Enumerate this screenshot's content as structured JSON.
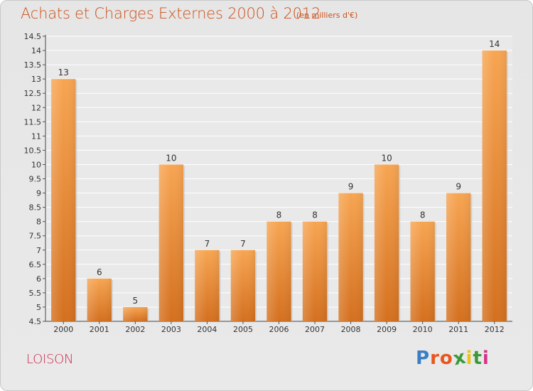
{
  "header": {
    "title": "Achats et Charges Externes 2000 à 2012",
    "subtitle": "(en milliers d'€)"
  },
  "footer": {
    "town": "LOISON",
    "logo_text": "Proxiti",
    "logo_colors": [
      "#3a7fc4",
      "#e8561c",
      "#e8561c",
      "#3a9a3a",
      "#e8c41c",
      "#3a9a3a",
      "#d6338a"
    ]
  },
  "chart_data": {
    "type": "bar",
    "categories": [
      "2000",
      "2001",
      "2002",
      "2003",
      "2004",
      "2005",
      "2006",
      "2007",
      "2008",
      "2009",
      "2010",
      "2011",
      "2012"
    ],
    "values": [
      13,
      6,
      5,
      10,
      7,
      7,
      8,
      8,
      9,
      10,
      8,
      9,
      14
    ],
    "value_labels": [
      "13",
      "6",
      "5",
      "10",
      "7",
      "7",
      "8",
      "8",
      "9",
      "10",
      "8",
      "9",
      "14"
    ],
    "title": "Achats et Charges Externes 2000 à 2012",
    "xlabel": "",
    "ylabel": "",
    "ylim": [
      4.5,
      14.5
    ],
    "yticks": [
      4.5,
      5,
      5.5,
      6,
      6.5,
      7,
      7.5,
      8,
      8.5,
      9,
      9.5,
      10,
      10.5,
      11,
      11.5,
      12,
      12.5,
      13,
      13.5,
      14,
      14.5
    ],
    "ytick_labels": [
      "4.5",
      "5",
      "5.5",
      "6",
      "6.5",
      "7",
      "7.5",
      "8",
      "8.5",
      "9",
      "9.5",
      "10",
      "10.5",
      "11",
      "11.5",
      "12",
      "12.5",
      "13",
      "13.5",
      "14",
      "14.5"
    ],
    "grid": true,
    "bar_color": "#f39a3e"
  }
}
